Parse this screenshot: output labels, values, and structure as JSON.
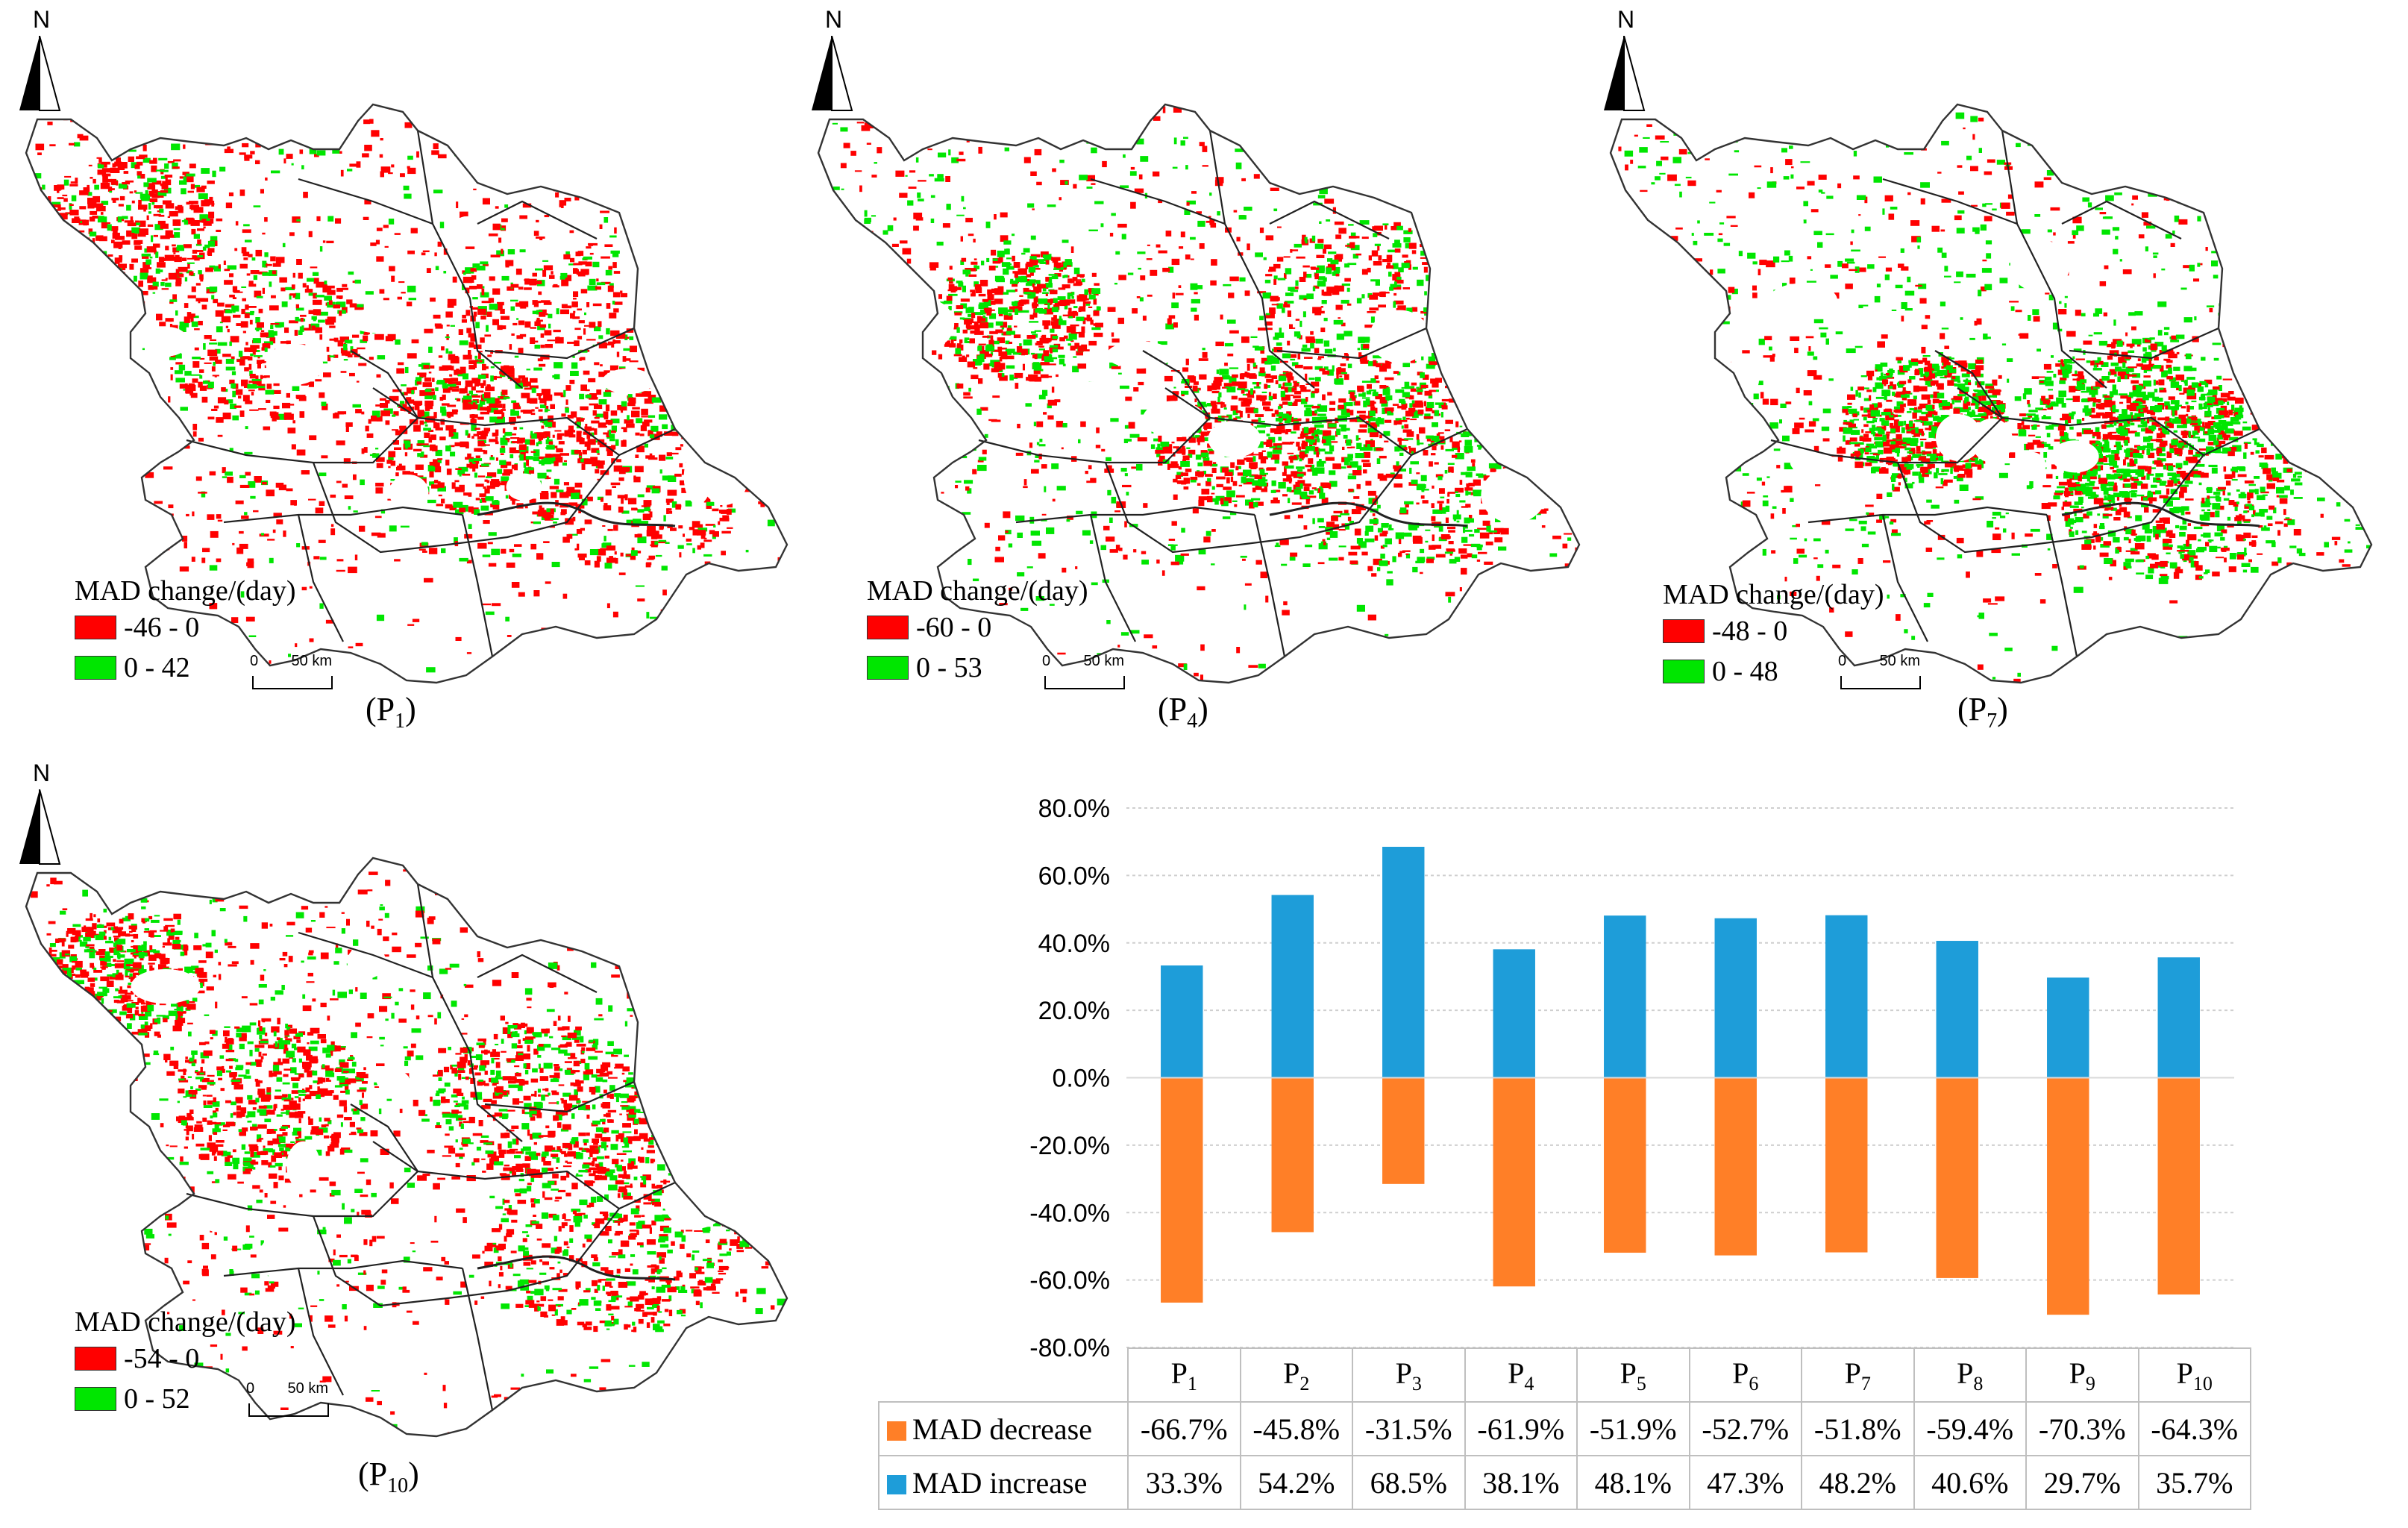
{
  "colors": {
    "decrease_map": "#ff0000",
    "increase_map": "#00e600",
    "increase_bar": "#1e9dd9",
    "decrease_bar": "#ff7f27",
    "grid": "#cfcfcf"
  },
  "north_arrow": {
    "label": "N"
  },
  "maps": [
    {
      "id": "P1",
      "caption_main": "P",
      "caption_sub": "1",
      "legend_title": "MAD change/(day)",
      "neg_range": "-46 - 0",
      "pos_range": "0 - 42",
      "scale_zero": "0",
      "scale_label": "50 km"
    },
    {
      "id": "P4",
      "caption_main": "P",
      "caption_sub": "4",
      "legend_title": "MAD change/(day)",
      "neg_range": "-60 - 0",
      "pos_range": "0 - 53",
      "scale_zero": "0",
      "scale_label": "50 km"
    },
    {
      "id": "P7",
      "caption_main": "P",
      "caption_sub": "7",
      "legend_title": "MAD change/(day)",
      "neg_range": "-48 - 0",
      "pos_range": "0 - 48",
      "scale_zero": "0",
      "scale_label": "50 km"
    },
    {
      "id": "P10",
      "caption_main": "P",
      "caption_sub": "10",
      "legend_title": "MAD change/(day)",
      "neg_range": "-54 - 0",
      "pos_range": "0 - 52",
      "scale_zero": "0",
      "scale_label": "50 km"
    }
  ],
  "chart_data": {
    "type": "bar",
    "categories": [
      "P1",
      "P2",
      "P3",
      "P4",
      "P5",
      "P6",
      "P7",
      "P8",
      "P9",
      "P10"
    ],
    "category_main": [
      "P",
      "P",
      "P",
      "P",
      "P",
      "P",
      "P",
      "P",
      "P",
      "P"
    ],
    "category_sub": [
      "1",
      "2",
      "3",
      "4",
      "5",
      "6",
      "7",
      "8",
      "9",
      "10"
    ],
    "series": [
      {
        "name": "MAD decrease",
        "values": [
          -66.7,
          -45.8,
          -31.5,
          -61.9,
          -51.9,
          -52.7,
          -51.8,
          -59.4,
          -70.3,
          -64.3
        ],
        "labels": [
          "-66.7%",
          "-45.8%",
          "-31.5%",
          "-61.9%",
          "-51.9%",
          "-52.7%",
          "-51.8%",
          "-59.4%",
          "-70.3%",
          "-64.3%"
        ]
      },
      {
        "name": "MAD increase",
        "values": [
          33.3,
          54.2,
          68.5,
          38.1,
          48.1,
          47.3,
          48.2,
          40.6,
          29.7,
          35.7
        ],
        "labels": [
          "33.3%",
          "54.2%",
          "68.5%",
          "38.1%",
          "48.1%",
          "47.3%",
          "48.2%",
          "40.6%",
          "29.7%",
          "35.7%"
        ]
      }
    ],
    "ylim": [
      -80,
      80
    ],
    "ytick_values": [
      80,
      60,
      40,
      20,
      0,
      -20,
      -40,
      -60,
      -80
    ],
    "ytick_labels": [
      "80.0%",
      "60.0%",
      "40.0%",
      "20.0%",
      "0.0%",
      "-20.0%",
      "-40.0%",
      "-60.0%",
      "-80.0%"
    ],
    "grid": true,
    "legend": "data-table",
    "title": "",
    "xlabel": "",
    "ylabel": ""
  }
}
